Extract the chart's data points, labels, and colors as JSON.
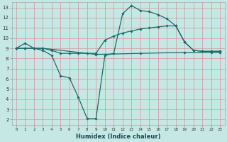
{
  "xlabel": "Humidex (Indice chaleur)",
  "background_color": "#c5e8e5",
  "grid_color": "#d4a0a0",
  "line_color": "#1a6b6b",
  "xlim": [
    -0.5,
    23.5
  ],
  "ylim": [
    1.5,
    13.5
  ],
  "xticks": [
    0,
    1,
    2,
    3,
    4,
    5,
    6,
    7,
    8,
    9,
    10,
    11,
    12,
    13,
    14,
    15,
    16,
    17,
    18,
    19,
    20,
    21,
    22,
    23
  ],
  "yticks": [
    2,
    3,
    4,
    5,
    6,
    7,
    8,
    9,
    10,
    11,
    12,
    13
  ],
  "series": [
    {
      "x": [
        0,
        1,
        2,
        3,
        4,
        5,
        6,
        7,
        8,
        9,
        10,
        11,
        12,
        13,
        14,
        15,
        16,
        17,
        18,
        19,
        20,
        21,
        22,
        23
      ],
      "y": [
        9.0,
        9.5,
        9.0,
        8.8,
        8.3,
        6.3,
        6.1,
        4.2,
        2.1,
        2.1,
        8.3,
        8.5,
        12.4,
        13.2,
        12.7,
        12.6,
        12.3,
        11.9,
        11.2,
        9.6,
        8.8,
        8.7,
        8.7,
        8.7
      ]
    },
    {
      "x": [
        0,
        1,
        2,
        3,
        4,
        5,
        6,
        7,
        8,
        9,
        10,
        11,
        12,
        13,
        14,
        15,
        16,
        17,
        18,
        19,
        20,
        21,
        22,
        23
      ],
      "y": [
        9.0,
        9.0,
        9.0,
        9.0,
        8.8,
        8.5,
        8.5,
        8.5,
        8.5,
        8.5,
        9.8,
        10.2,
        10.5,
        10.7,
        10.9,
        11.0,
        11.1,
        11.2,
        11.2,
        9.6,
        8.8,
        8.7,
        8.7,
        8.7
      ]
    },
    {
      "x": [
        0,
        1,
        2,
        3,
        9,
        14,
        19,
        22,
        23
      ],
      "y": [
        9.0,
        9.0,
        9.0,
        9.0,
        8.4,
        8.5,
        8.6,
        8.6,
        8.6
      ]
    }
  ]
}
